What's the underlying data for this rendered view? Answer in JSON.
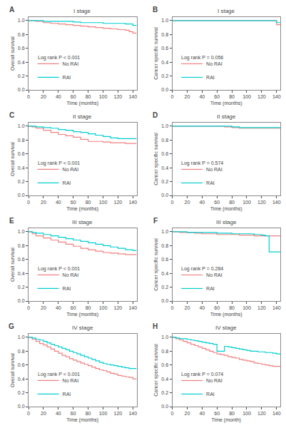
{
  "chart_data": [
    {
      "type": "step",
      "title": "I stage",
      "xlabel": "Time (months)",
      "ylabel": "Overall survival",
      "annotations": [
        "A",
        "Log rank P < 0.001"
      ],
      "xlim": [
        0,
        145
      ],
      "xticks": [
        0,
        20,
        40,
        60,
        80,
        100,
        120,
        140
      ],
      "ylim": [
        0.0,
        1.05
      ],
      "yticks": [
        {
          "value": 0.0,
          "label": "0.0"
        },
        0.2,
        0.4,
        0.6,
        0.8,
        {
          "value": 1.0,
          "label": "1.0"
        }
      ],
      "grid": false,
      "legend": "lower left",
      "series": [
        {
          "name": "No RAI",
          "color": "#F08080",
          "x": [
            0,
            10,
            20,
            30,
            40,
            50,
            60,
            70,
            80,
            90,
            100,
            110,
            120,
            130,
            135,
            140,
            145
          ],
          "values": [
            1.0,
            0.99,
            0.97,
            0.96,
            0.95,
            0.94,
            0.93,
            0.92,
            0.91,
            0.9,
            0.89,
            0.88,
            0.87,
            0.86,
            0.84,
            0.82,
            0.82
          ]
        },
        {
          "name": "RAI",
          "color": "#00CED1",
          "x": [
            0,
            10,
            20,
            30,
            40,
            50,
            60,
            70,
            80,
            90,
            100,
            110,
            120,
            130,
            140,
            145
          ],
          "values": [
            1.0,
            1.0,
            0.99,
            0.99,
            0.99,
            0.99,
            0.98,
            0.97,
            0.97,
            0.97,
            0.96,
            0.96,
            0.96,
            0.95,
            0.93,
            0.93
          ]
        }
      ]
    },
    {
      "type": "step",
      "title": "I stage",
      "xlabel": "Time (months)",
      "ylabel": "Cancer specific survival",
      "annotations": [
        "B",
        "Log rank P = 0.056"
      ],
      "xlim": [
        0,
        145
      ],
      "xticks": [
        0,
        20,
        40,
        60,
        80,
        100,
        120,
        140
      ],
      "ylim": [
        0.0,
        1.05
      ],
      "yticks": [
        {
          "value": 0.0,
          "label": "0.0"
        },
        0.2,
        0.4,
        0.6,
        0.8,
        {
          "value": 1.0,
          "label": "1.0"
        }
      ],
      "grid": false,
      "legend": "lower left",
      "series": [
        {
          "name": "No RAI",
          "color": "#F08080",
          "x": [
            0,
            130,
            135,
            140,
            145
          ],
          "values": [
            1.0,
            1.0,
            1.0,
            0.94,
            0.94
          ]
        },
        {
          "name": "RAI",
          "color": "#00CED1",
          "x": [
            0,
            130,
            135,
            140,
            145
          ],
          "values": [
            1.0,
            1.0,
            1.0,
            0.97,
            0.97
          ]
        }
      ]
    },
    {
      "type": "step",
      "title": "II stage",
      "xlabel": "Time (months)",
      "ylabel": "Overall survival",
      "annotations": [
        "C",
        "Log rank P < 0.001"
      ],
      "xlim": [
        0,
        145
      ],
      "xticks": [
        0,
        20,
        40,
        60,
        80,
        100,
        120,
        140
      ],
      "ylim": [
        0.0,
        1.05
      ],
      "yticks": [
        {
          "value": 0.0,
          "label": "0.0"
        },
        0.2,
        0.4,
        0.6,
        0.8,
        {
          "value": 1.0,
          "label": "1.0"
        }
      ],
      "grid": false,
      "legend": "lower left",
      "series": [
        {
          "name": "No RAI",
          "color": "#F08080",
          "x": [
            0,
            5,
            10,
            20,
            30,
            40,
            50,
            60,
            70,
            80,
            90,
            100,
            110,
            120,
            130,
            140,
            145
          ],
          "values": [
            1.0,
            0.99,
            0.97,
            0.94,
            0.91,
            0.88,
            0.86,
            0.84,
            0.81,
            0.78,
            0.78,
            0.77,
            0.76,
            0.76,
            0.75,
            0.75,
            0.75
          ]
        },
        {
          "name": "RAI",
          "color": "#00CED1",
          "x": [
            0,
            5,
            10,
            20,
            30,
            40,
            50,
            60,
            70,
            80,
            90,
            100,
            110,
            120,
            130,
            140,
            145
          ],
          "values": [
            1.0,
            1.0,
            0.99,
            0.98,
            0.97,
            0.95,
            0.94,
            0.92,
            0.91,
            0.89,
            0.87,
            0.85,
            0.83,
            0.82,
            0.82,
            0.82,
            0.82
          ]
        }
      ]
    },
    {
      "type": "step",
      "title": "II stage",
      "xlabel": "Time (months)",
      "ylabel": "Cancer specific survival",
      "annotations": [
        "D",
        "Log rank P = 0.574"
      ],
      "xlim": [
        0,
        145
      ],
      "xticks": [
        0,
        20,
        40,
        60,
        80,
        100,
        120,
        140
      ],
      "ylim": [
        0.0,
        1.05
      ],
      "yticks": [
        {
          "value": 0.0,
          "label": "0.0"
        },
        0.2,
        0.4,
        0.6,
        0.8,
        {
          "value": 1.0,
          "label": "1.0"
        }
      ],
      "grid": false,
      "legend": "lower left",
      "series": [
        {
          "name": "No RAI",
          "color": "#F08080",
          "x": [
            0,
            60,
            70,
            80,
            90,
            100,
            110,
            120,
            130,
            140,
            145
          ],
          "values": [
            1.0,
            1.0,
            0.99,
            0.98,
            0.97,
            0.97,
            0.97,
            0.97,
            0.97,
            0.97,
            0.97
          ]
        },
        {
          "name": "RAI",
          "color": "#00CED1",
          "x": [
            0,
            60,
            70,
            80,
            90,
            100,
            110,
            120,
            130,
            140,
            145
          ],
          "values": [
            1.0,
            1.0,
            1.0,
            0.99,
            0.98,
            0.98,
            0.98,
            0.98,
            0.98,
            0.98,
            0.98
          ]
        }
      ]
    },
    {
      "type": "step",
      "title": "III stage",
      "xlabel": "Time (months)",
      "ylabel": "Overall survival",
      "annotations": [
        "E",
        "Log rank P < 0.001"
      ],
      "xlim": [
        0,
        145
      ],
      "xticks": [
        0,
        20,
        40,
        60,
        80,
        100,
        120,
        140
      ],
      "ylim": [
        0.0,
        1.05
      ],
      "yticks": [
        {
          "value": 0.0,
          "label": "0.0"
        },
        0.2,
        0.4,
        0.6,
        0.8,
        {
          "value": 1.0,
          "label": "1.0"
        }
      ],
      "grid": false,
      "legend": "lower left",
      "series": [
        {
          "name": "No RAI",
          "color": "#F08080",
          "x": [
            0,
            5,
            10,
            20,
            30,
            40,
            50,
            60,
            70,
            80,
            90,
            100,
            110,
            120,
            130,
            140,
            145
          ],
          "values": [
            1.0,
            0.97,
            0.94,
            0.91,
            0.88,
            0.85,
            0.82,
            0.79,
            0.76,
            0.74,
            0.72,
            0.7,
            0.69,
            0.68,
            0.67,
            0.67,
            0.67
          ]
        },
        {
          "name": "RAI",
          "color": "#00CED1",
          "x": [
            0,
            5,
            10,
            20,
            30,
            40,
            50,
            60,
            70,
            80,
            90,
            100,
            110,
            120,
            130,
            140,
            145
          ],
          "values": [
            1.0,
            0.99,
            0.98,
            0.96,
            0.94,
            0.92,
            0.9,
            0.88,
            0.86,
            0.84,
            0.82,
            0.8,
            0.78,
            0.76,
            0.74,
            0.73,
            0.73
          ]
        }
      ]
    },
    {
      "type": "step",
      "title": "III stage",
      "xlabel": "Time (months)",
      "ylabel": "Cancer specific survival",
      "annotations": [
        "F",
        "Log rank P = 0.284"
      ],
      "xlim": [
        0,
        145
      ],
      "xticks": [
        0,
        20,
        40,
        60,
        80,
        100,
        120,
        140
      ],
      "ylim": [
        0.0,
        1.05
      ],
      "yticks": [
        {
          "value": 0.0,
          "label": "0.0"
        },
        0.2,
        0.4,
        0.6,
        0.8,
        {
          "value": 1.0,
          "label": "1.0"
        }
      ],
      "grid": false,
      "legend": "lower left",
      "series": [
        {
          "name": "No RAI",
          "color": "#F08080",
          "x": [
            0,
            10,
            20,
            30,
            40,
            50,
            60,
            70,
            80,
            90,
            100,
            110,
            120,
            130,
            140,
            145
          ],
          "values": [
            1.0,
            0.99,
            0.99,
            0.98,
            0.97,
            0.97,
            0.96,
            0.96,
            0.96,
            0.95,
            0.95,
            0.94,
            0.94,
            0.94,
            0.94,
            0.94
          ]
        },
        {
          "name": "RAI",
          "color": "#00CED1",
          "x": [
            0,
            10,
            20,
            30,
            40,
            50,
            60,
            70,
            80,
            90,
            100,
            110,
            120,
            125,
            130,
            140,
            145
          ],
          "values": [
            1.0,
            1.0,
            0.99,
            0.99,
            0.99,
            0.99,
            0.98,
            0.98,
            0.97,
            0.97,
            0.97,
            0.96,
            0.95,
            0.94,
            0.71,
            0.71,
            0.71
          ]
        }
      ]
    },
    {
      "type": "step",
      "title": "IV stage",
      "xlabel": "Time (months)",
      "ylabel": "Overall survival",
      "annotations": [
        "G",
        "Log rank P < 0.001"
      ],
      "xlim": [
        0,
        145
      ],
      "xticks": [
        0,
        20,
        40,
        60,
        80,
        100,
        120,
        140
      ],
      "ylim": [
        0.0,
        1.05
      ],
      "yticks": [
        {
          "value": 0.0,
          "label": "0.0"
        },
        0.2,
        0.4,
        0.6,
        0.8,
        {
          "value": 1.0,
          "label": "1.0"
        }
      ],
      "grid": false,
      "legend": "lower left",
      "series": [
        {
          "name": "No RAI",
          "color": "#F08080",
          "x": [
            0,
            5,
            10,
            15,
            20,
            25,
            30,
            35,
            40,
            45,
            50,
            55,
            60,
            65,
            70,
            75,
            80,
            85,
            90,
            95,
            100,
            105,
            110,
            115,
            120,
            125,
            130,
            135,
            140,
            145
          ],
          "values": [
            1.0,
            0.97,
            0.94,
            0.91,
            0.89,
            0.86,
            0.83,
            0.8,
            0.77,
            0.74,
            0.72,
            0.69,
            0.67,
            0.65,
            0.63,
            0.61,
            0.59,
            0.57,
            0.55,
            0.53,
            0.52,
            0.5,
            0.48,
            0.47,
            0.45,
            0.44,
            0.43,
            0.42,
            0.4,
            0.4
          ]
        },
        {
          "name": "RAI",
          "color": "#00CED1",
          "x": [
            0,
            5,
            10,
            15,
            20,
            25,
            30,
            35,
            40,
            45,
            50,
            55,
            60,
            65,
            70,
            75,
            80,
            85,
            90,
            95,
            100,
            105,
            110,
            115,
            120,
            125,
            130,
            135,
            140,
            145
          ],
          "values": [
            1.0,
            0.99,
            0.97,
            0.96,
            0.94,
            0.92,
            0.9,
            0.88,
            0.86,
            0.84,
            0.82,
            0.8,
            0.78,
            0.76,
            0.74,
            0.72,
            0.7,
            0.68,
            0.66,
            0.64,
            0.62,
            0.61,
            0.6,
            0.59,
            0.58,
            0.57,
            0.56,
            0.55,
            0.55,
            0.55
          ]
        }
      ]
    },
    {
      "type": "step",
      "title": "IV stage",
      "xlabel": "Time (month)",
      "ylabel": "Cancer specific survival",
      "annotations": [
        "H",
        "Log rank P = 0.074"
      ],
      "xlim": [
        0,
        145
      ],
      "xticks": [
        0,
        20,
        40,
        60,
        80,
        100,
        120,
        140
      ],
      "ylim": [
        0.0,
        1.05
      ],
      "yticks": [
        {
          "value": 0.0,
          "label": "0.0"
        },
        0.2,
        0.4,
        0.6,
        0.8,
        {
          "value": 1.0,
          "label": "1.0"
        }
      ],
      "grid": false,
      "legend": "lower left",
      "series": [
        {
          "name": "No RAI",
          "color": "#F08080",
          "x": [
            0,
            5,
            10,
            15,
            20,
            25,
            30,
            35,
            40,
            45,
            50,
            55,
            60,
            65,
            70,
            75,
            80,
            85,
            90,
            95,
            100,
            105,
            110,
            115,
            120,
            125,
            130,
            135,
            140,
            145
          ],
          "values": [
            1.0,
            0.98,
            0.96,
            0.94,
            0.92,
            0.9,
            0.88,
            0.86,
            0.84,
            0.82,
            0.8,
            0.78,
            0.76,
            0.75,
            0.74,
            0.72,
            0.71,
            0.7,
            0.68,
            0.67,
            0.66,
            0.65,
            0.63,
            0.62,
            0.61,
            0.6,
            0.59,
            0.58,
            0.58,
            0.58
          ]
        },
        {
          "name": "RAI",
          "color": "#00CED1",
          "x": [
            0,
            5,
            10,
            15,
            20,
            25,
            30,
            35,
            40,
            45,
            50,
            55,
            60,
            65,
            70,
            75,
            80,
            85,
            90,
            95,
            100,
            105,
            110,
            115,
            120,
            125,
            130,
            135,
            140,
            145
          ],
          "values": [
            1.0,
            0.99,
            0.98,
            0.98,
            0.97,
            0.96,
            0.95,
            0.94,
            0.93,
            0.92,
            0.91,
            0.9,
            0.8,
            0.8,
            0.87,
            0.86,
            0.85,
            0.84,
            0.83,
            0.82,
            0.81,
            0.8,
            0.8,
            0.79,
            0.79,
            0.78,
            0.78,
            0.77,
            0.76,
            0.76
          ]
        }
      ]
    }
  ]
}
